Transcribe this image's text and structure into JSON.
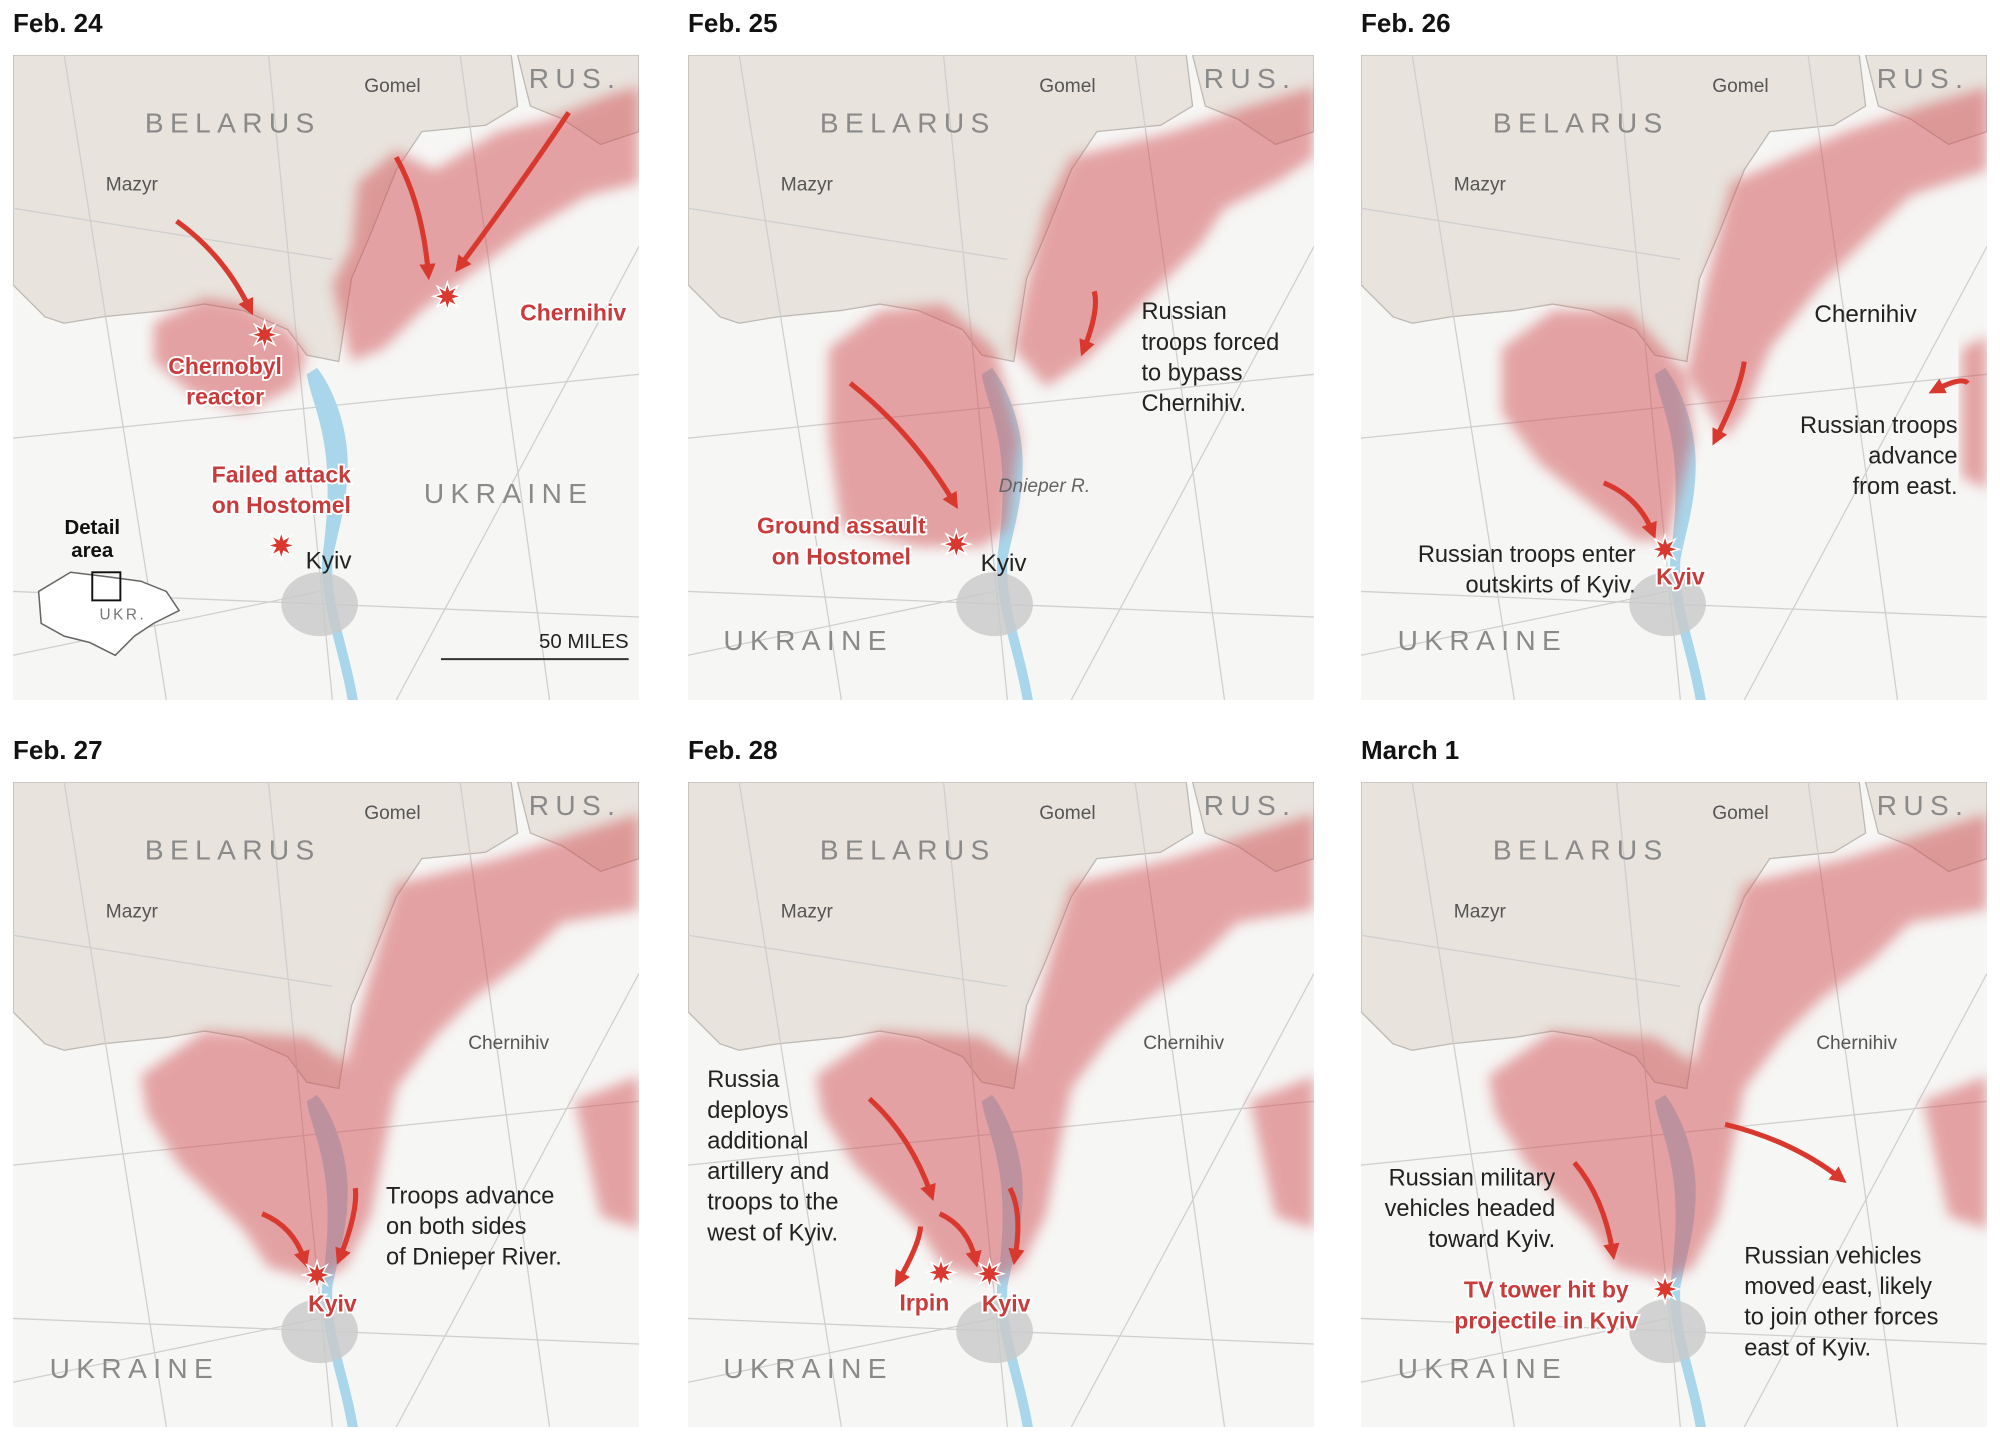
{
  "panels": [
    {
      "date": "Feb. 24",
      "countries": [
        "BELARUS",
        "RUS.",
        "UKRAINE"
      ],
      "places": [
        "Gomel",
        "Mazyr",
        "Kyiv"
      ],
      "notes": [],
      "events": [
        [
          "Chernihiv"
        ],
        [
          "Chernobyl",
          "reactor"
        ],
        [
          "Failed attack",
          "on Hostomel"
        ]
      ],
      "inset": [
        "Detail",
        "area"
      ],
      "inset_country": "UKR.",
      "scale": "50 MILES"
    },
    {
      "date": "Feb. 25",
      "countries": [
        "BELARUS",
        "RUS.",
        "UKRAINE"
      ],
      "places": [
        "Gomel",
        "Mazyr",
        "Kyiv",
        "Dnieper R."
      ],
      "notes": [
        [
          "Russian",
          "troops forced",
          "to bypass",
          "Chernihiv."
        ]
      ],
      "events": [
        [
          "Ground assault",
          "on Hostomel"
        ]
      ]
    },
    {
      "date": "Feb. 26",
      "countries": [
        "BELARUS",
        "RUS.",
        "UKRAINE"
      ],
      "places": [
        "Gomel",
        "Mazyr",
        "Chernihiv"
      ],
      "notes": [
        [
          "Russian troops",
          "advance",
          "from east."
        ],
        [
          "Russian troops enter",
          "outskirts of Kyiv."
        ]
      ],
      "events": [
        [
          "Kyiv"
        ]
      ]
    },
    {
      "date": "Feb. 27",
      "countries": [
        "BELARUS",
        "RUS.",
        "UKRAINE"
      ],
      "places": [
        "Gomel",
        "Mazyr",
        "Chernihiv"
      ],
      "notes": [
        [
          "Troops advance",
          "on both sides",
          "of Dnieper River."
        ]
      ],
      "events": [
        [
          "Kyiv"
        ]
      ]
    },
    {
      "date": "Feb. 28",
      "countries": [
        "BELARUS",
        "RUS.",
        "UKRAINE"
      ],
      "places": [
        "Gomel",
        "Mazyr",
        "Chernihiv"
      ],
      "notes": [
        [
          "Russia",
          "deploys",
          "additional",
          "artillery and",
          "troops to the",
          "west of Kyiv."
        ]
      ],
      "events": [
        [
          "Irpin"
        ],
        [
          "Kyiv"
        ]
      ]
    },
    {
      "date": "March 1",
      "countries": [
        "BELARUS",
        "RUS.",
        "UKRAINE"
      ],
      "places": [
        "Gomel",
        "Mazyr",
        "Chernihiv"
      ],
      "notes": [
        [
          "Russian military",
          "vehicles headed",
          "toward Kyiv."
        ],
        [
          "Russian vehicles",
          "moved east, likely",
          "to join other forces",
          "east of Kyiv."
        ]
      ],
      "events": [
        [
          "TV tower hit by",
          "projectile in Kyiv"
        ]
      ]
    }
  ]
}
